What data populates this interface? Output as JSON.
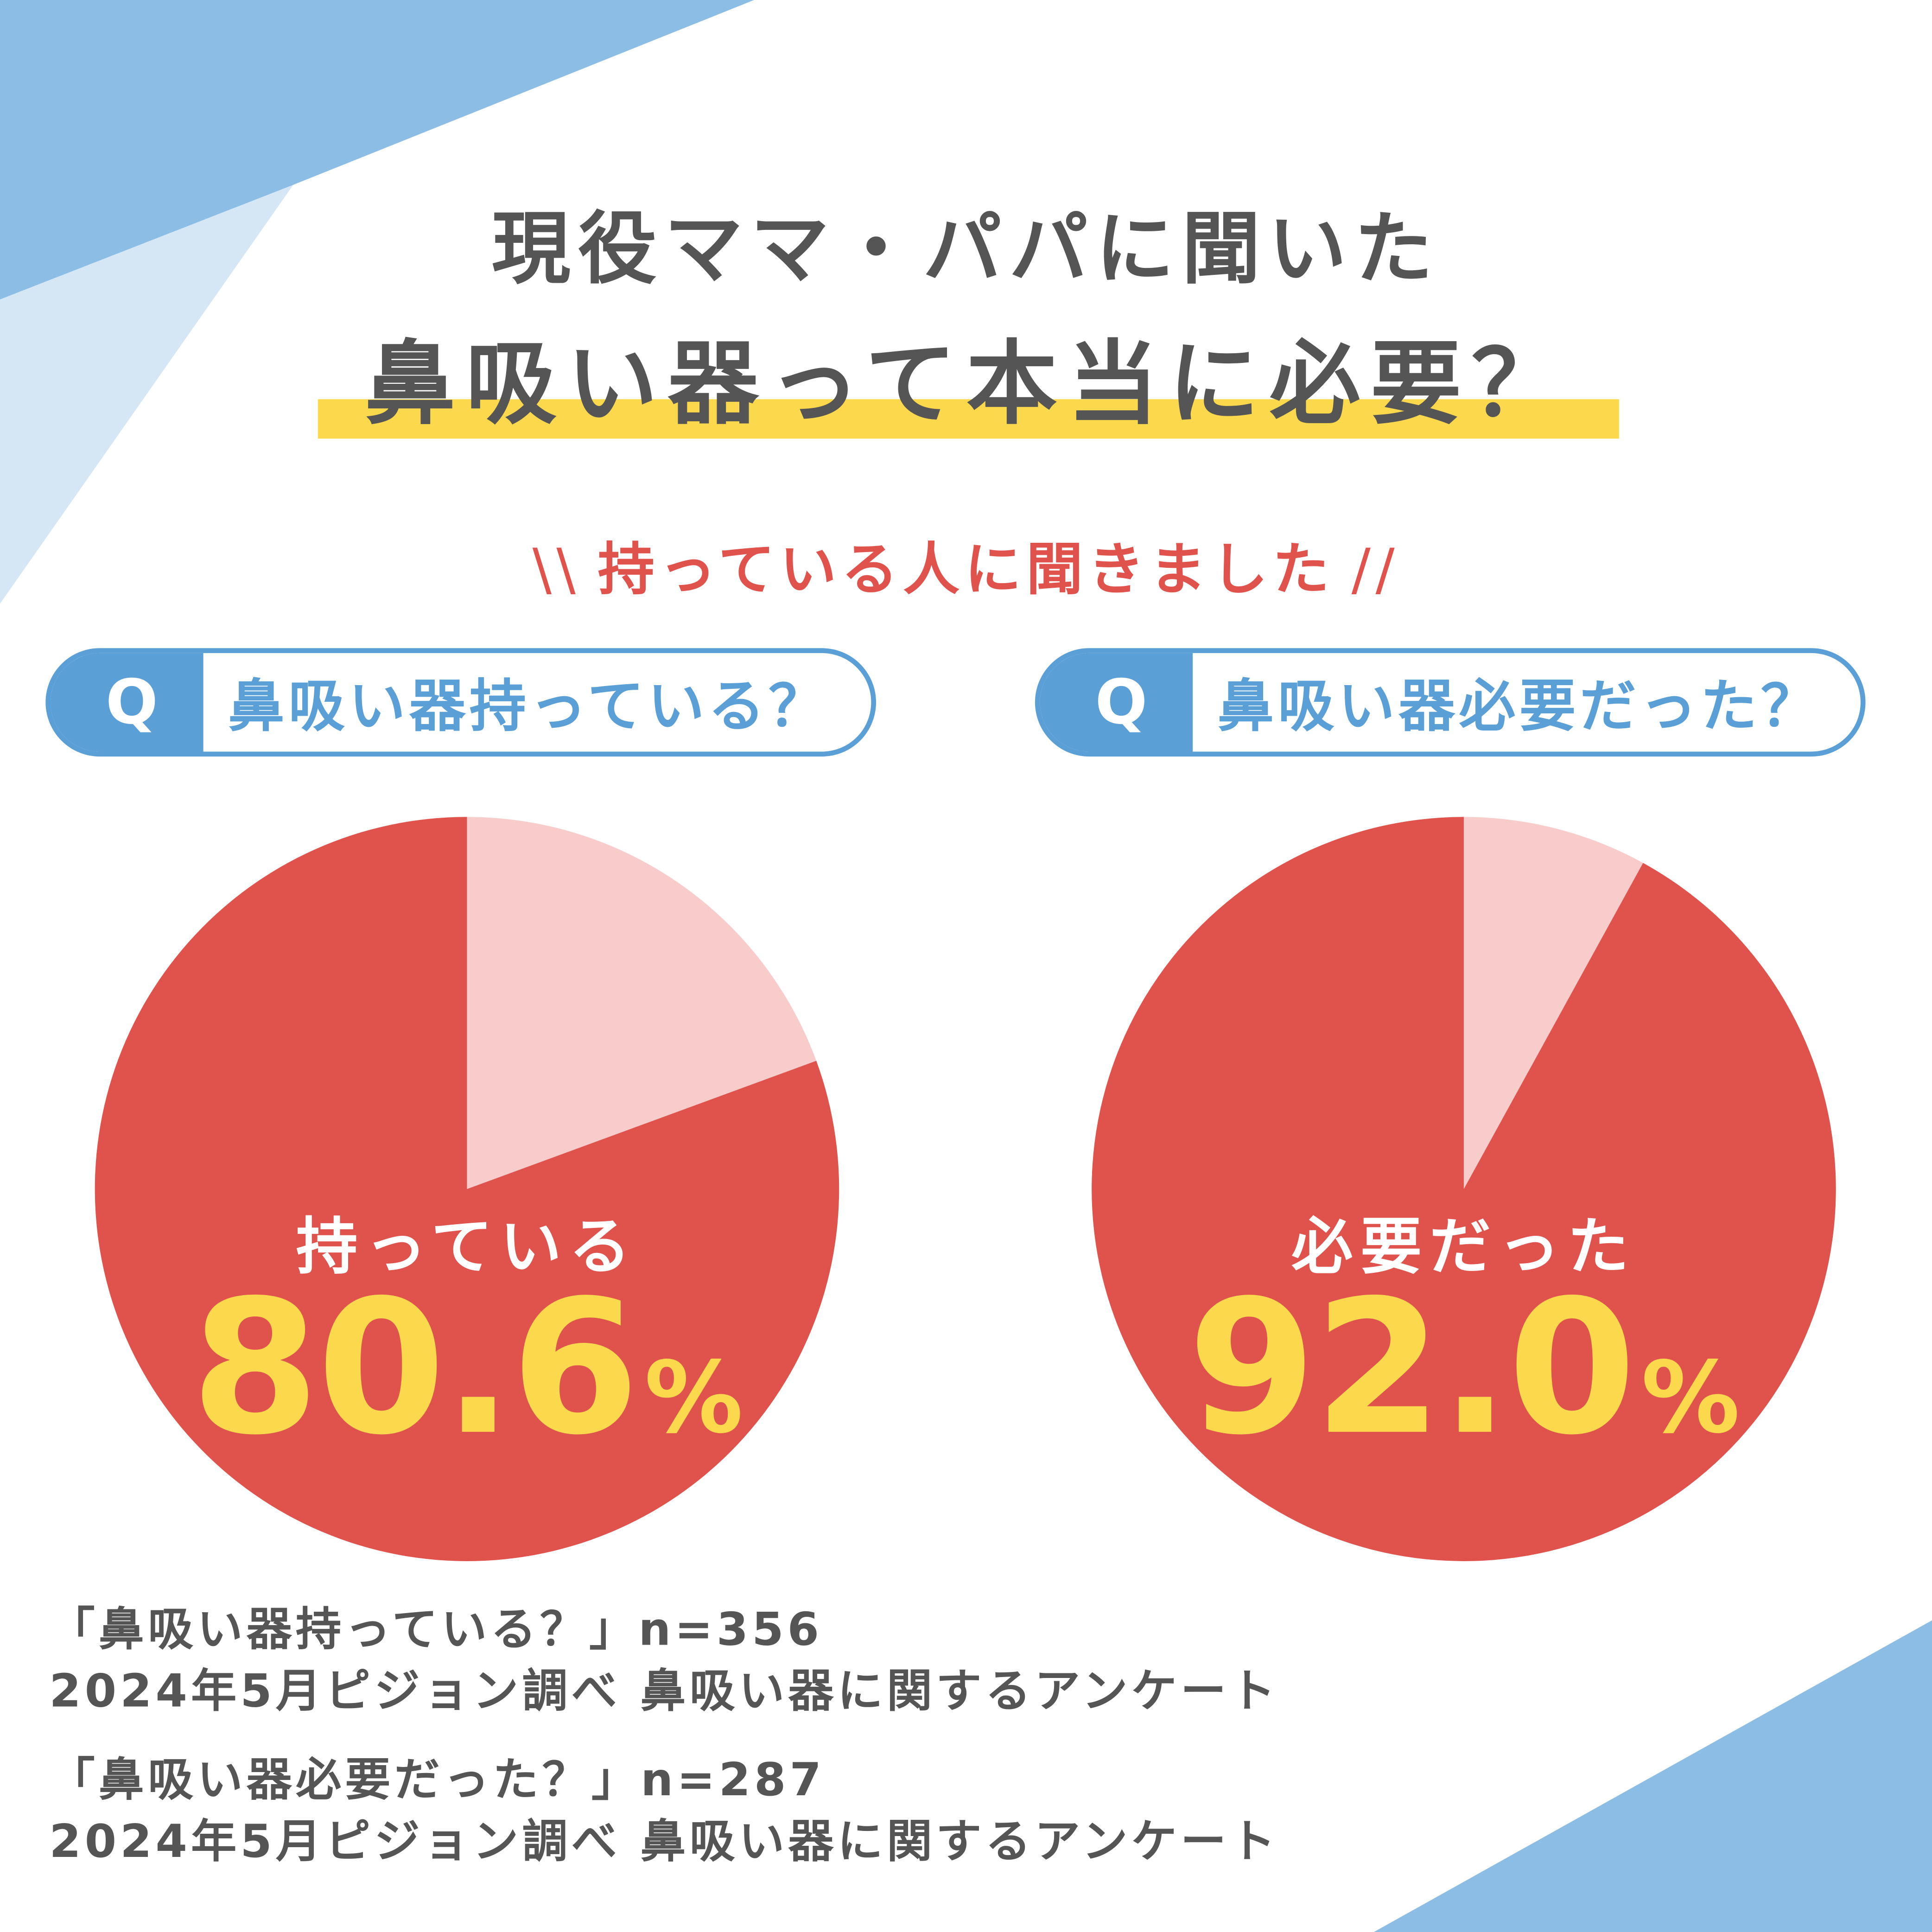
{
  "header": {
    "title_line1": "現役ママ・パパに聞いた",
    "title_line2": "鼻吸い器って本当に必要？",
    "subtitle": "持っている人に聞きました"
  },
  "questions": [
    {
      "tag": "Q",
      "text": "鼻吸い器持っている？"
    },
    {
      "tag": "Q",
      "text": "鼻吸い器必要だった？"
    }
  ],
  "chart_data": [
    {
      "type": "pie",
      "label": "持っている",
      "value_text": "80.6",
      "unit": "%",
      "slices": [
        {
          "label": "持っている",
          "value": 80.6,
          "color": "#e0534d"
        },
        {
          "value": 19.4,
          "color": "#f7cccb"
        }
      ]
    },
    {
      "type": "pie",
      "label": "必要だった",
      "value_text": "92.0",
      "unit": "%",
      "slices": [
        {
          "label": "必要だった",
          "value": 92.0,
          "color": "#e0534d"
        },
        {
          "value": 8.0,
          "color": "#f7cccb"
        }
      ]
    }
  ],
  "notes": [
    "「鼻吸い器持っている？」n=356",
    "2024年5月ピジョン調べ 鼻吸い器に関するアンケート",
    "「鼻吸い器必要だった？」n=287",
    "2024年5月ピジョン調べ 鼻吸い器に関するアンケート"
  ],
  "colors": {
    "accent_blue": "#5a9fd6",
    "light_blue": "#8cbde4",
    "pale_blue": "#d5e7f5",
    "red": "#e0534d",
    "pink": "#f7cccb",
    "yellow": "#fcd94c",
    "text": "#555555"
  }
}
